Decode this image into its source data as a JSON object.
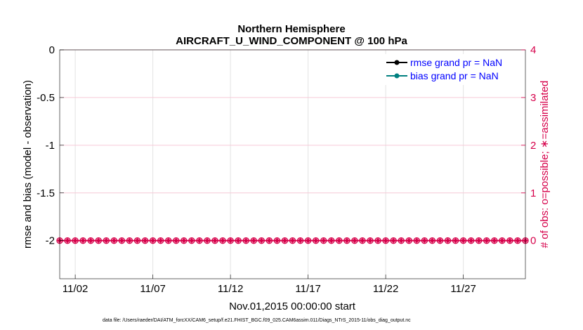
{
  "chart_data": {
    "type": "line",
    "title": "Northern Hemisphere",
    "subtitle": "AIRCRAFT_U_WIND_COMPONENT @ 100 hPa",
    "xlabel": "Nov.01,2015 00:00:00 start",
    "ylabel": "rmse and bias (model - observation)",
    "y2label": "# of obs: o=possible; ∗=assimilated",
    "xlim": [
      0.0,
      30.0
    ],
    "ylim": [
      -2.4,
      0
    ],
    "y2lim": [
      -0.8,
      4
    ],
    "x_ticks": [
      {
        "x": 1,
        "label": "11/02"
      },
      {
        "x": 6,
        "label": "11/07"
      },
      {
        "x": 11,
        "label": "11/12"
      },
      {
        "x": 16,
        "label": "11/17"
      },
      {
        "x": 21,
        "label": "11/22"
      },
      {
        "x": 26,
        "label": "11/27"
      }
    ],
    "y_ticks": [
      {
        "v": 0,
        "label": "0"
      },
      {
        "v": -0.5,
        "label": "-0.5"
      },
      {
        "v": -1,
        "label": "-1"
      },
      {
        "v": -1.5,
        "label": "-1.5"
      },
      {
        "v": -2,
        "label": "-2"
      }
    ],
    "y2_ticks": [
      {
        "v": 0,
        "label": "0"
      },
      {
        "v": 1,
        "label": "1"
      },
      {
        "v": 2,
        "label": "2"
      },
      {
        "v": 3,
        "label": "3"
      },
      {
        "v": 4,
        "label": "4"
      }
    ],
    "series": [
      {
        "name": "rmse grand pr = NaN",
        "color": "#000000",
        "values": []
      },
      {
        "name": "bias grand pr = NaN",
        "color": "#008080",
        "values": []
      }
    ],
    "obs_counts": {
      "color": "#d6004a",
      "x_start": 0.0,
      "x_end": 30.0,
      "n_points": 61,
      "possible": 0,
      "assimilated": 0
    },
    "grid": true,
    "legend": "top-right",
    "footer": "data file: /Users/raeder/DAI/ATM_forcXX/CAM6_setup/f.e21.FHIST_BGC.f09_025.CAM6assim.011/Diags_NTrS_2015-11/obs_diag_output.nc"
  }
}
